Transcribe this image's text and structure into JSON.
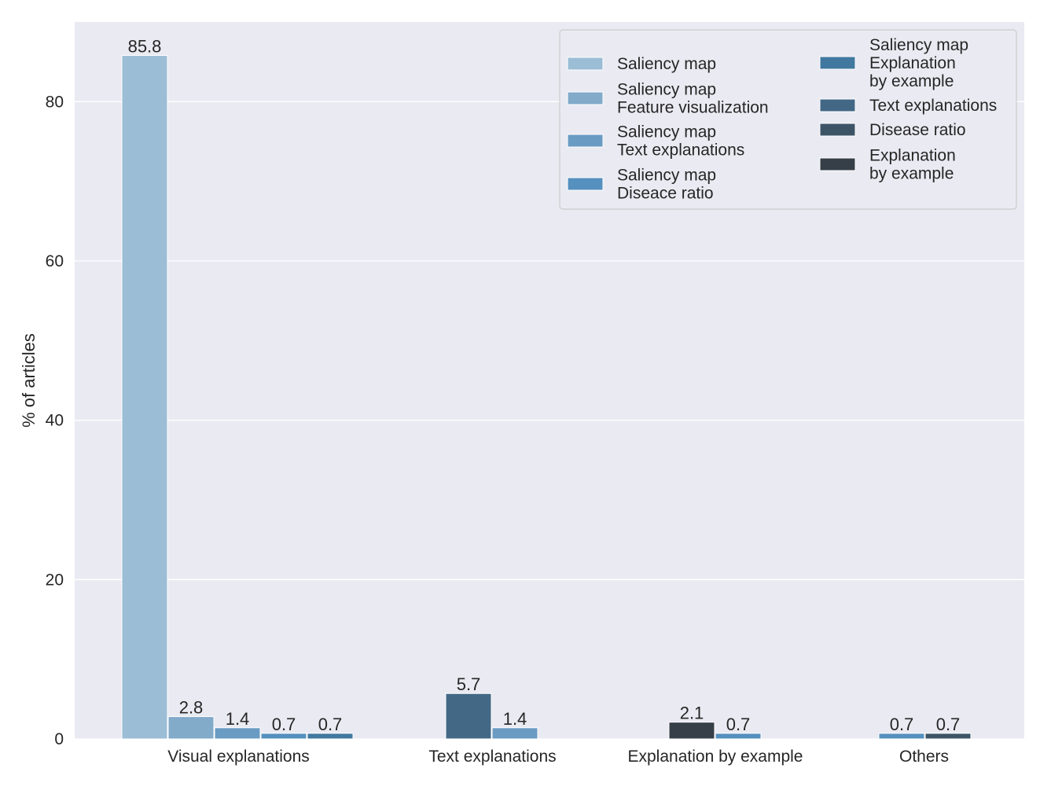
{
  "chart_data": {
    "type": "bar",
    "title": "",
    "xlabel": "",
    "ylabel": "% of articles",
    "ylim": [
      0,
      90
    ],
    "yticks": [
      "0",
      "20",
      "40",
      "60",
      "80"
    ],
    "ytick_values": [
      0,
      20,
      40,
      60,
      80
    ],
    "grid": true,
    "legend_position": "top-right",
    "legend_columns": 2,
    "categories": [
      "Visual explanations",
      "Text explanations",
      "Explanation by example",
      "Others"
    ],
    "series": [
      {
        "name": "Saliency map",
        "lines": [
          "Saliency map"
        ],
        "color": "#9bbdd5",
        "points": [
          {
            "category": "Visual explanations",
            "slot": 0,
            "value": 85.8,
            "label": "85.8"
          }
        ]
      },
      {
        "name": "Saliency map Feature visualization",
        "lines": [
          "Saliency map",
          "Feature visualization"
        ],
        "color": "#82aac9",
        "points": [
          {
            "category": "Visual explanations",
            "slot": 1,
            "value": 2.8,
            "label": "2.8"
          }
        ]
      },
      {
        "name": "Saliency map Text explanations",
        "lines": [
          "Saliency map",
          "Text explanations"
        ],
        "color": "#6a9bc2",
        "points": [
          {
            "category": "Visual explanations",
            "slot": 2,
            "value": 1.4,
            "label": "1.4"
          },
          {
            "category": "Text explanations",
            "slot": 1,
            "value": 1.4,
            "label": "1.4"
          }
        ]
      },
      {
        "name": "Saliency map Diseace ratio",
        "lines": [
          "Saliency map",
          "Diseace ratio"
        ],
        "color": "#5590be",
        "points": [
          {
            "category": "Visual explanations",
            "slot": 3,
            "value": 0.7,
            "label": "0.7"
          },
          {
            "category": "Explanation by example",
            "slot": 1,
            "value": 0.7,
            "label": "0.7"
          },
          {
            "category": "Others",
            "slot": 0,
            "value": 0.7,
            "label": "0.7"
          }
        ]
      },
      {
        "name": "Saliency map Explanation by example",
        "lines": [
          "Saliency map",
          "Explanation",
          "by example"
        ],
        "color": "#41789f",
        "points": [
          {
            "category": "Visual explanations",
            "slot": 4,
            "value": 0.7,
            "label": "0.7"
          }
        ]
      },
      {
        "name": "Text explanations",
        "lines": [
          "Text explanations"
        ],
        "color": "#436886",
        "points": [
          {
            "category": "Text explanations",
            "slot": 0,
            "value": 5.7,
            "label": "5.7"
          }
        ]
      },
      {
        "name": "Disease ratio",
        "lines": [
          "Disease ratio"
        ],
        "color": "#3d5466",
        "points": [
          {
            "category": "Others",
            "slot": 1,
            "value": 0.7,
            "label": "0.7"
          }
        ]
      },
      {
        "name": "Explanation by example",
        "lines": [
          "Explanation",
          "by example"
        ],
        "color": "#363f48",
        "points": [
          {
            "category": "Explanation by example",
            "slot": 0,
            "value": 2.1,
            "label": "2.1"
          }
        ]
      }
    ]
  },
  "theme": {
    "plot_background": "#eaeaf2",
    "grid_color": "#ffffff",
    "text_color": "#262626",
    "legend_background": "#eaeaf2",
    "legend_border": "#cccccc"
  }
}
